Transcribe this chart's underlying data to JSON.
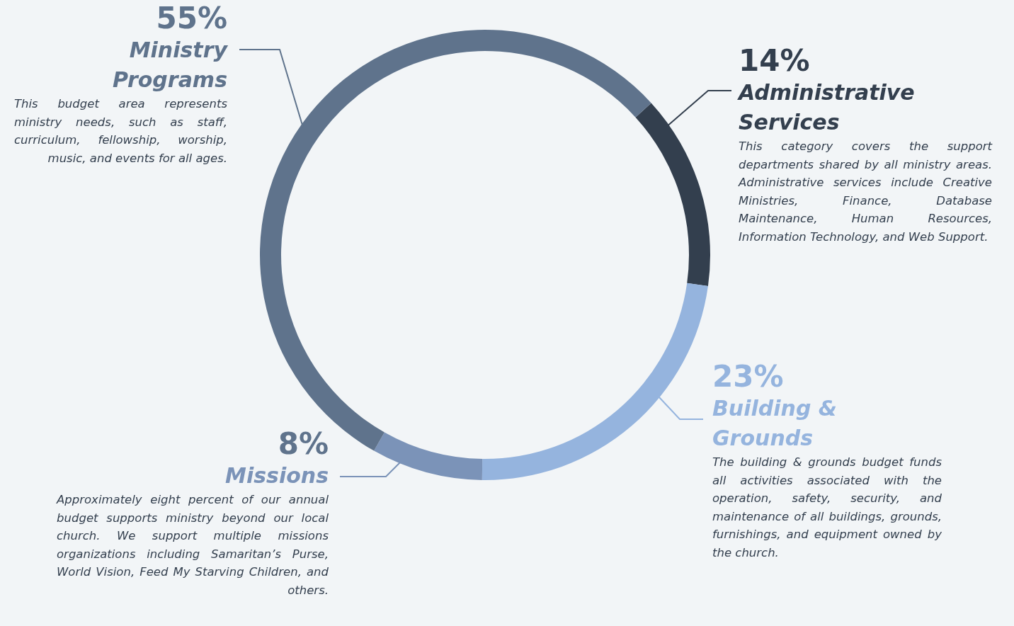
{
  "chart_data": {
    "type": "donut",
    "categories": [
      "Administrative Services",
      "Building & Grounds",
      "Missions",
      "Ministry Programs"
    ],
    "values": [
      14,
      23,
      8,
      55
    ],
    "value_labels": [
      "14%",
      "23%",
      "8%",
      "55%"
    ],
    "colors": [
      "#333f4e",
      "#95b4de",
      "#7b93b8",
      "#5f738c"
    ],
    "annotations": [
      "This category covers the support departments shared by all ministry areas. Administrative services include Creative Ministries, Finance, Database Maintenance, Human Resources, Information Technology, and Web Support.",
      "The building & grounds budget funds all activities associated with the operation, safety, security, and maintenance of all buildings, grounds, furnishings, and equipment owned by the church.",
      "Approximately eight percent of our annual budget supports ministry beyond our local church. We support multiple missions organizations including Samaritan’s Purse, World Vision, Feed My Starving Children, and others.",
      "This budget area represents ministry needs, such as staff, curriculum, fellowship, worship, music, and events for all ages."
    ]
  }
}
